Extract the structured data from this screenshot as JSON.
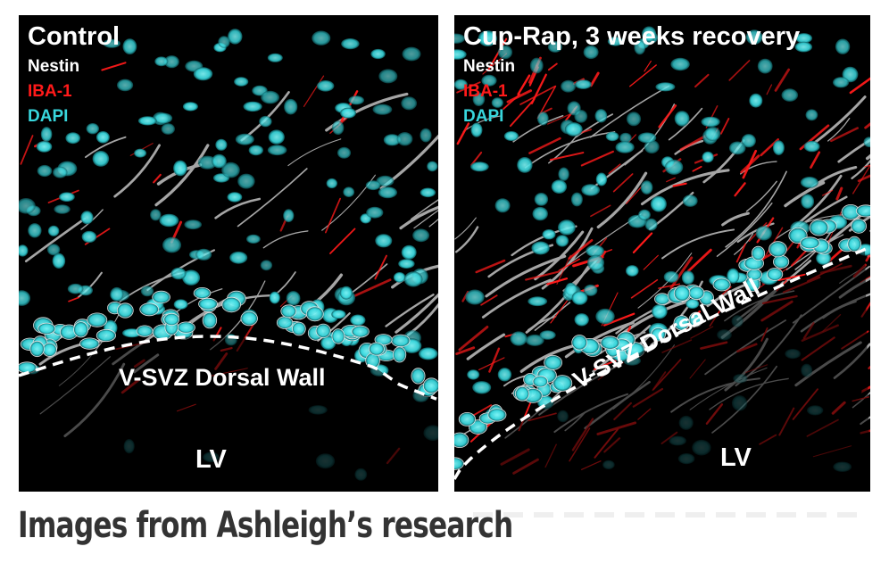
{
  "panels": {
    "left": {
      "title": "Control",
      "wall_label": "V-SVZ Dorsal Wall",
      "lv_label": "LV"
    },
    "right": {
      "title": "Cup-Rap, 3 weeks recovery",
      "wall_label": "V-SVZ Dorsal Wall",
      "lv_label": "LV"
    }
  },
  "legend": {
    "nestin": "Nestin",
    "iba1": "IBA-1",
    "dapi": "DAPI"
  },
  "colors": {
    "nestin": "#ffffff",
    "iba1": "#ff1a1a",
    "dapi": "#38d6dc",
    "background": "#000000"
  },
  "caption": "Images from Ashleigh’s research"
}
